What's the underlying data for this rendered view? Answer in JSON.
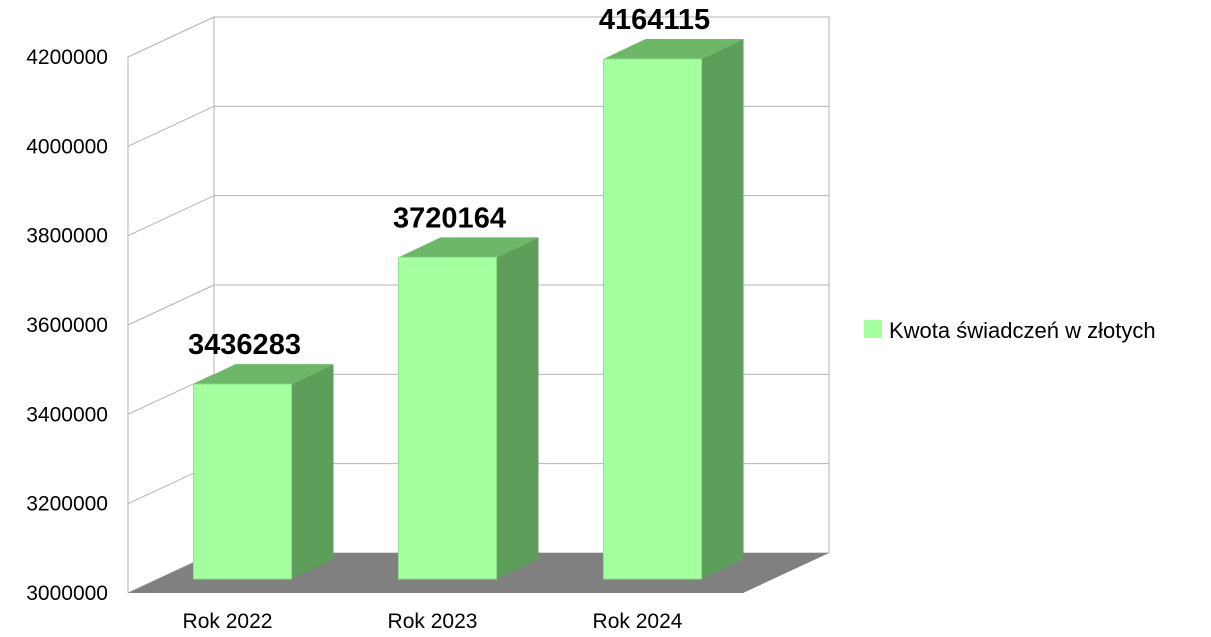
{
  "chart_data": {
    "type": "bar",
    "title": "",
    "xlabel": "",
    "ylabel": "",
    "categories": [
      "Rok 2022",
      "Rok 2023",
      "Rok 2024"
    ],
    "series": [
      {
        "name": "Kwota świadczeń w złotych",
        "values": [
          3436283,
          3720164,
          4164115
        ]
      }
    ],
    "data_labels": [
      "3436283",
      "3720164",
      "4164115"
    ],
    "y_ticks": [
      "3000000",
      "3200000",
      "3400000",
      "3600000",
      "3800000",
      "4000000",
      "4200000"
    ],
    "ylim": [
      3000000,
      4200000
    ],
    "grid": true,
    "legend_position": "right",
    "style": "3d",
    "colors": {
      "bar_front": "#a4ff9f",
      "bar_side": "#5d9f5a",
      "bar_top": "#6db769",
      "floor": "#808080",
      "grid": "#b3b3b3"
    }
  }
}
